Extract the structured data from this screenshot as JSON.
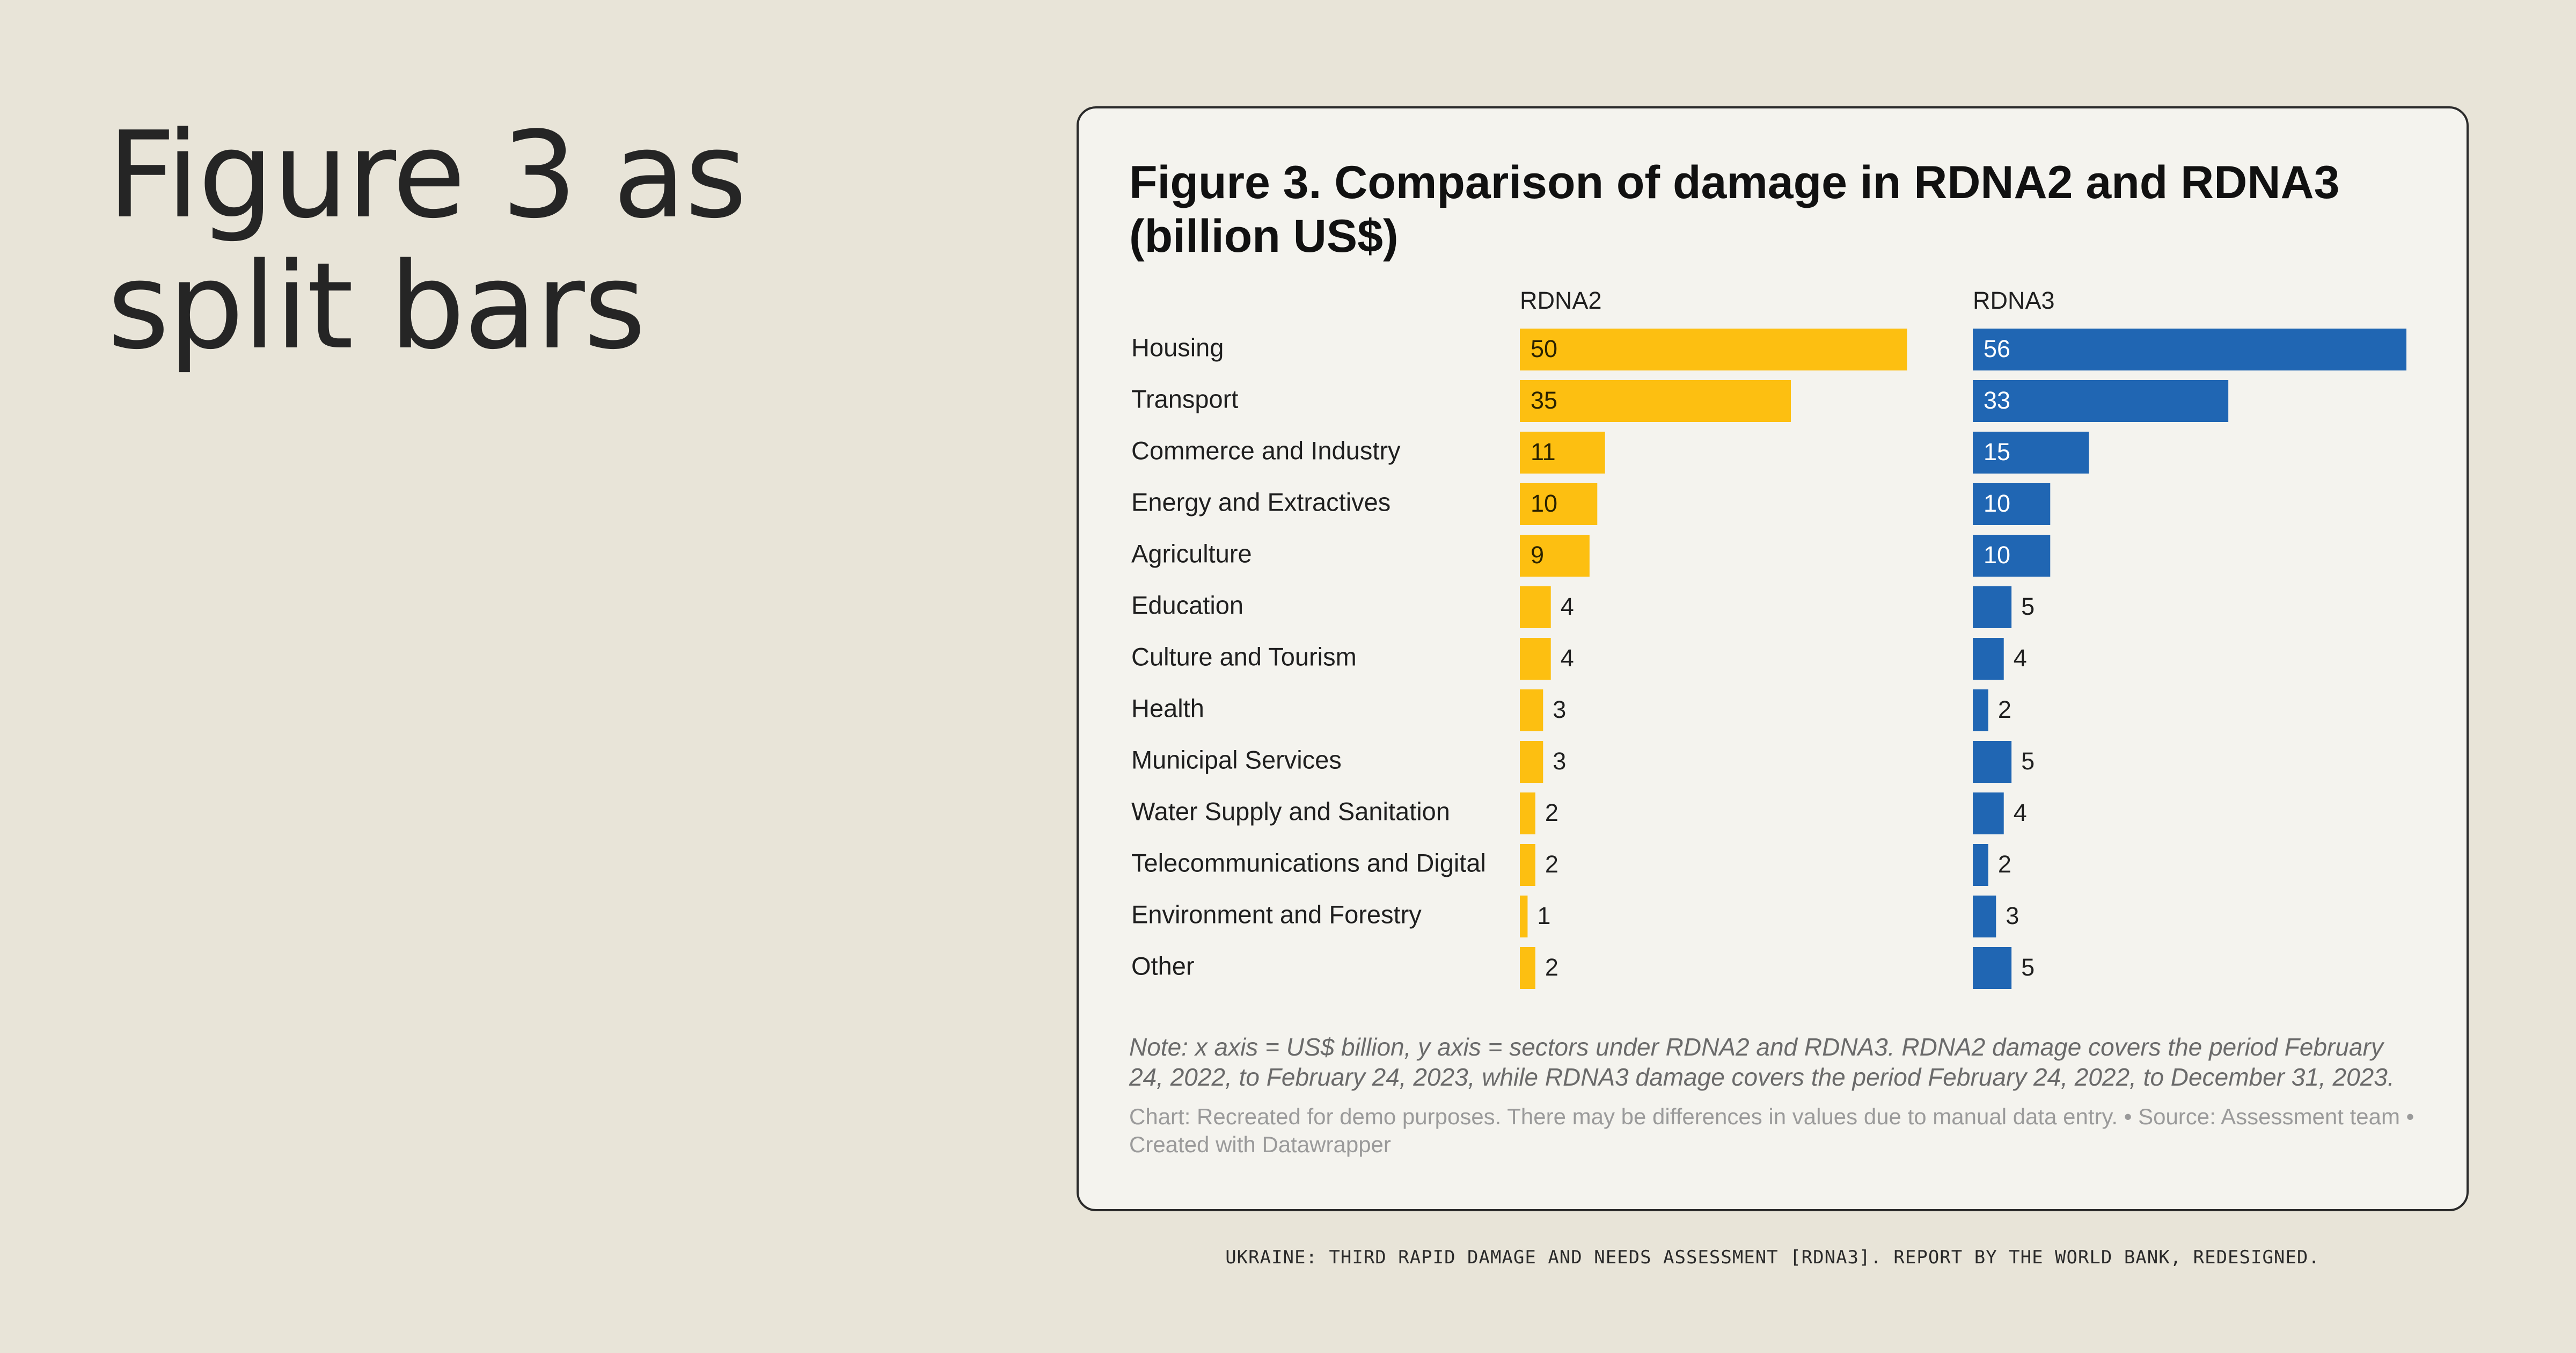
{
  "page": {
    "heading": "Figure 3 as split bars",
    "footer": "UKRAINE: THIRD RAPID DAMAGE AND NEEDS ASSESSMENT [RDNA3]. REPORT BY THE WORLD BANK, REDESIGNED."
  },
  "colors": {
    "rdna2": "#fdbf11",
    "rdna3": "#2066b3",
    "background": "#e8e4d8",
    "card": "#f4f3ee"
  },
  "chart_data": {
    "type": "bar",
    "orientation": "horizontal",
    "layout": "split-bars",
    "title": "Figure 3. Comparison of damage in RDNA2 and RDNA3 (billion US$)",
    "categories": [
      "Housing",
      "Transport",
      "Commerce and Industry",
      "Energy and Extractives",
      "Agriculture",
      "Education",
      "Culture and Tourism",
      "Health",
      "Municipal Services",
      "Water Supply and Sanitation",
      "Telecommunications and Digital",
      "Environment and Forestry",
      "Other"
    ],
    "series": [
      {
        "name": "RDNA2",
        "values": [
          50,
          35,
          11,
          10,
          9,
          4,
          4,
          3,
          3,
          2,
          2,
          1,
          2
        ],
        "color": "#fdbf11"
      },
      {
        "name": "RDNA3",
        "values": [
          56,
          33,
          15,
          10,
          10,
          5,
          4,
          2,
          5,
          4,
          2,
          3,
          5
        ],
        "color": "#2066b3"
      }
    ],
    "grid": false,
    "note": "Note: x axis = US$ billion, y axis = sectors under RDNA2 and RDNA3. RDNA2 damage covers the period February 24, 2022, to February 24, 2023, while RDNA3 damage covers the period February 24, 2022, to December 31, 2023.",
    "credit": "Chart: Recreated for demo purposes. There may be differences in values due to manual data entry. • Source: Assessment team • Created with Datawrapper"
  }
}
